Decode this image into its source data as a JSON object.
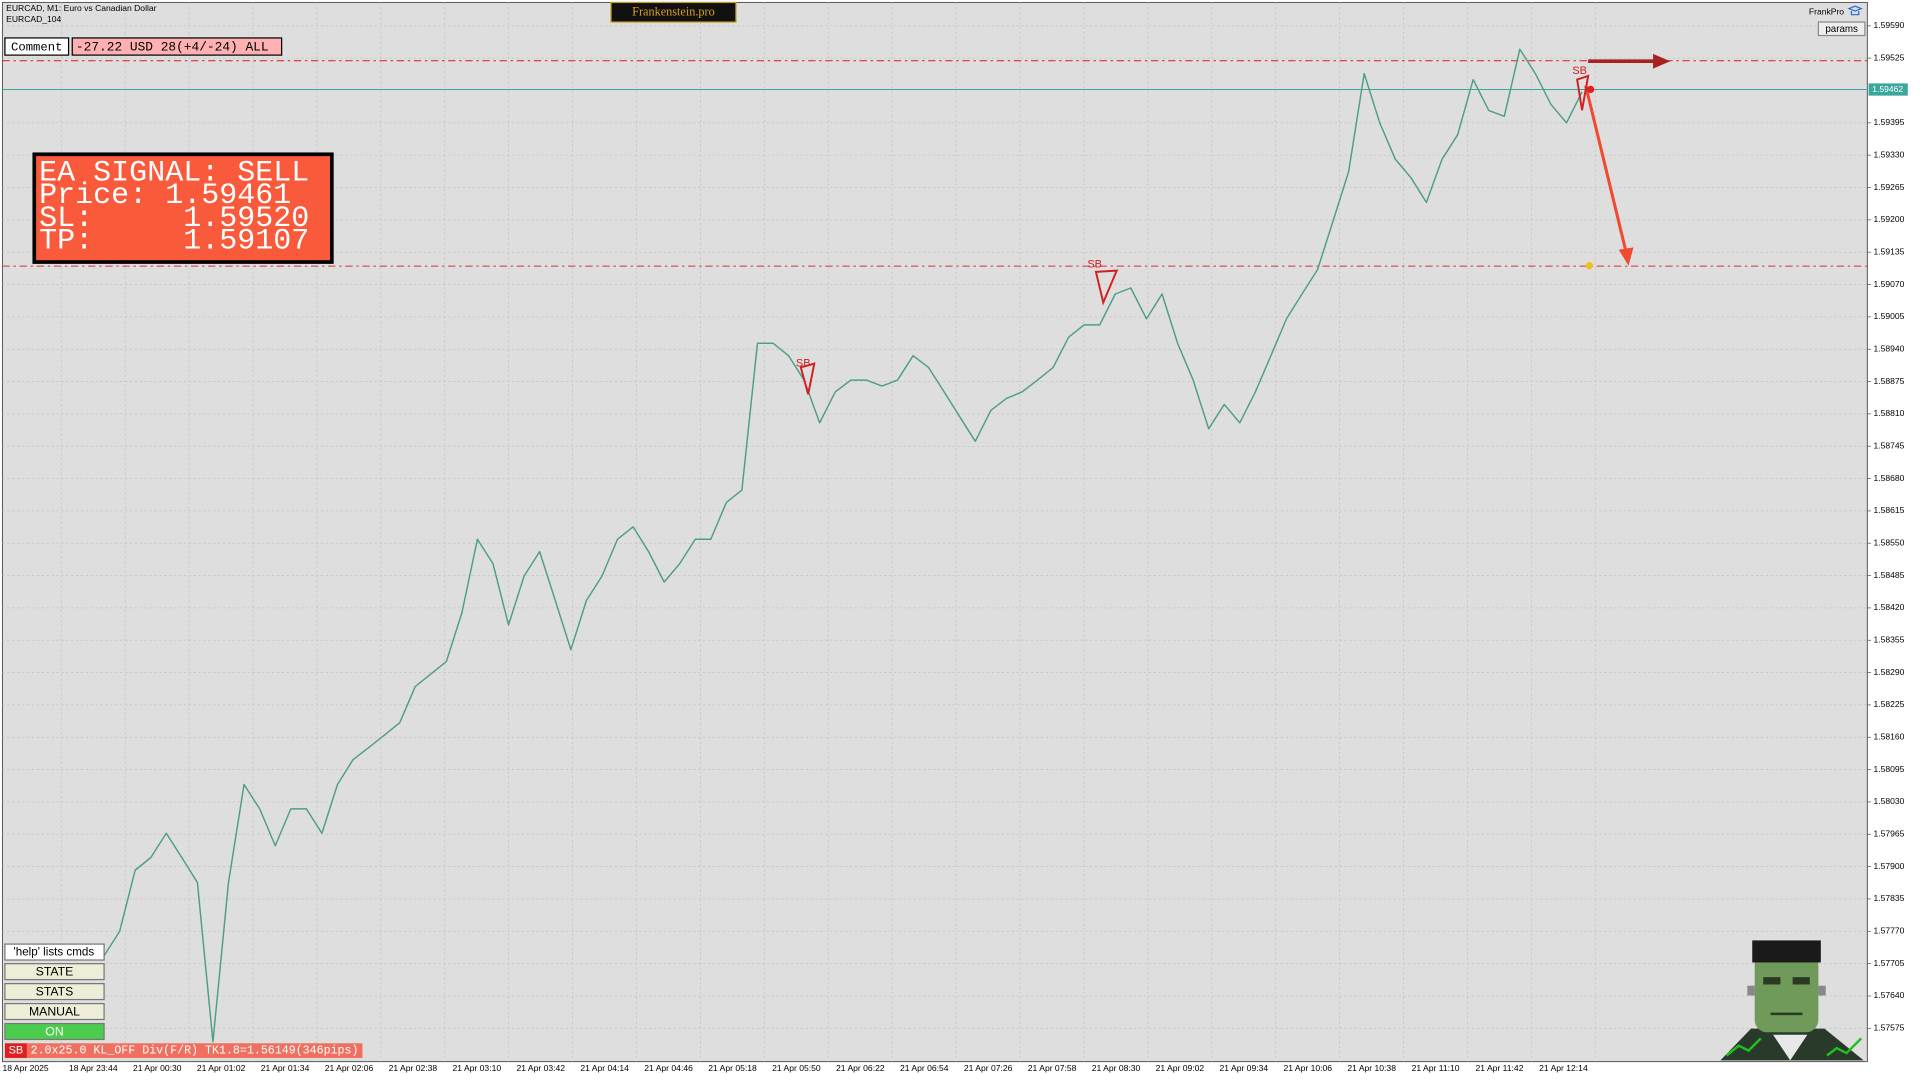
{
  "header": {
    "symbol": "EURCAD, M1:  Euro vs Canadian Dollar",
    "account": "EURCAD_104",
    "brand": "Frankenstein.pro",
    "user": "FrankPro",
    "params_button": "params"
  },
  "comment": {
    "label": "Comment",
    "text": "-27.22 USD 28(+4/-24) ALL"
  },
  "signal_box": {
    "lines": [
      "EA SIGNAL: SELL",
      "Price: 1.59461",
      "SL:     1.59520",
      "TP:     1.59107"
    ]
  },
  "buttons": {
    "help": "'help' lists cmds",
    "items": [
      "STATE",
      "STATS",
      "MANUAL",
      "ON"
    ]
  },
  "status_bar": {
    "badge": "SB",
    "text": "2.0x25.0 KL_OFF Div(F/R) TK1.8=1.56149(346pips)"
  },
  "signal_labels": [
    "SB",
    "SB",
    "SB"
  ],
  "chart_data": {
    "type": "line",
    "x_axis_labels": [
      "18 Apr 2025",
      "18 Apr 23:44",
      "21 Apr 00:30",
      "21 Apr 01:02",
      "21 Apr 01:34",
      "21 Apr 02:06",
      "21 Apr 02:38",
      "21 Apr 03:10",
      "21 Apr 03:42",
      "21 Apr 04:14",
      "21 Apr 04:46",
      "21 Apr 05:18",
      "21 Apr 05:50",
      "21 Apr 06:22",
      "21 Apr 06:54",
      "21 Apr 07:26",
      "21 Apr 07:58",
      "21 Apr 08:30",
      "21 Apr 09:02",
      "21 Apr 09:34",
      "21 Apr 10:06",
      "21 Apr 10:38",
      "21 Apr 11:10",
      "21 Apr 11:42",
      "21 Apr 12:14"
    ],
    "series": [
      {
        "color": "#4f9e86",
        "values": [
          1.57721,
          1.5777,
          1.57893,
          1.57918,
          1.57967,
          1.57918,
          1.57868,
          1.57548,
          1.57868,
          1.58065,
          1.58016,
          1.57942,
          1.58016,
          1.58016,
          1.57967,
          1.58065,
          1.58115,
          1.58139,
          1.58164,
          1.58189,
          1.58262,
          1.58287,
          1.58312,
          1.5841,
          1.58558,
          1.58509,
          1.58386,
          1.58484,
          1.58533,
          1.58435,
          1.58336,
          1.58435,
          1.58484,
          1.58558,
          1.58583,
          1.58533,
          1.58472,
          1.58509,
          1.58558,
          1.58558,
          1.58632,
          1.58657,
          1.58952,
          1.58952,
          1.58927,
          1.58878,
          1.58792,
          1.58854,
          1.58878,
          1.58878,
          1.58866,
          1.58878,
          1.58927,
          1.58903,
          1.58854,
          1.58804,
          1.58755,
          1.58817,
          1.58841,
          1.58854,
          1.58878,
          1.58903,
          1.58964,
          1.58989,
          1.58989,
          1.59051,
          1.59063,
          1.59001,
          1.59051,
          1.58952,
          1.58878,
          1.5878,
          1.58829,
          1.58792,
          1.58854,
          1.58927,
          1.59001,
          1.59051,
          1.591,
          1.59198,
          1.59297,
          1.59494,
          1.59395,
          1.59322,
          1.59285,
          1.59235,
          1.59322,
          1.59371,
          1.59482,
          1.5942,
          1.59408,
          1.59543,
          1.59494,
          1.59432,
          1.59395,
          1.59457
        ]
      }
    ],
    "ylim": [
      1.57508,
      1.59637
    ],
    "yticks": [
      {
        "value": 1.5959,
        "label": "1.59590"
      },
      {
        "value": 1.59525,
        "label": "1.59525"
      },
      {
        "value": 1.59395,
        "label": "1.59395"
      },
      {
        "value": 1.5933,
        "label": "1.59330"
      },
      {
        "value": 1.59265,
        "label": "1.59265"
      },
      {
        "value": 1.592,
        "label": "1.59200"
      },
      {
        "value": 1.59135,
        "label": "1.59135"
      },
      {
        "value": 1.5907,
        "label": "1.59070"
      },
      {
        "value": 1.59005,
        "label": "1.59005"
      },
      {
        "value": 1.5894,
        "label": "1.58940"
      },
      {
        "value": 1.58875,
        "label": "1.58875"
      },
      {
        "value": 1.5881,
        "label": "1.58810"
      },
      {
        "value": 1.58745,
        "label": "1.58745"
      },
      {
        "value": 1.5868,
        "label": "1.58680"
      },
      {
        "value": 1.58615,
        "label": "1.58615"
      },
      {
        "value": 1.5855,
        "label": "1.58550"
      },
      {
        "value": 1.58485,
        "label": "1.58485"
      },
      {
        "value": 1.5842,
        "label": "1.58420"
      },
      {
        "value": 1.58355,
        "label": "1.58355"
      },
      {
        "value": 1.5829,
        "label": "1.58290"
      },
      {
        "value": 1.58225,
        "label": "1.58225"
      },
      {
        "value": 1.5816,
        "label": "1.58160"
      },
      {
        "value": 1.58095,
        "label": "1.58095"
      },
      {
        "value": 1.5803,
        "label": "1.58030"
      },
      {
        "value": 1.57965,
        "label": "1.57965"
      },
      {
        "value": 1.579,
        "label": "1.57900"
      },
      {
        "value": 1.57835,
        "label": "1.57835"
      },
      {
        "value": 1.5777,
        "label": "1.57770"
      },
      {
        "value": 1.57705,
        "label": "1.57705"
      },
      {
        "value": 1.5764,
        "label": "1.57640"
      },
      {
        "value": 1.57575,
        "label": "1.57575"
      }
    ],
    "grid": true,
    "price_lines": [
      {
        "value": 1.5952,
        "color": "#e03030"
      },
      {
        "value": 1.59107,
        "color": "#e03030"
      }
    ],
    "current_price": {
      "value": 1.59462,
      "label": "1.59462",
      "color": "#3aa89a"
    }
  }
}
